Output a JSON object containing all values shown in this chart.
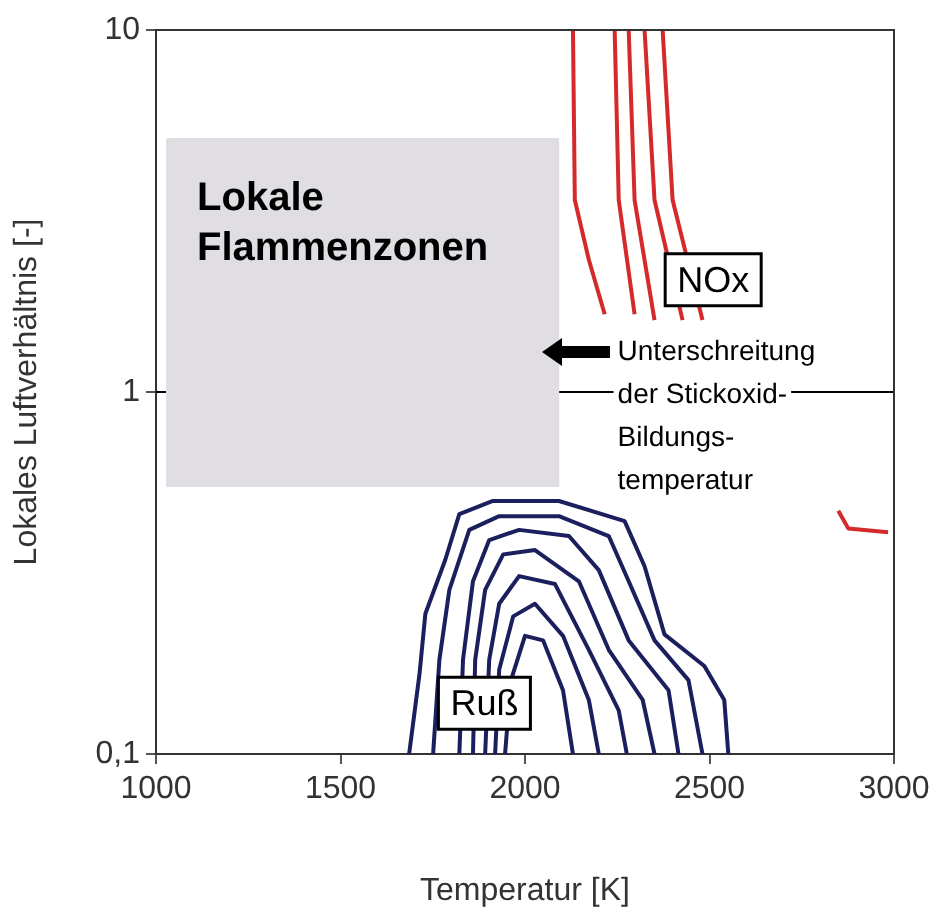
{
  "chart_data": {
    "type": "line",
    "xlabel": "Temperatur [K]",
    "ylabel": "Lokales Luftverhältnis [-]",
    "xlim": [
      1000,
      3000
    ],
    "xticks": [
      1000,
      1500,
      2000,
      2500,
      3000
    ],
    "ylim": [
      0.1,
      10
    ],
    "yticks": [
      {
        "value": 0.1,
        "label": "0,1"
      },
      1,
      10
    ],
    "log": "y",
    "grid": false,
    "legend": false,
    "marker": "none",
    "line_style": "solid",
    "series": [
      {
        "type": "area",
        "name": "Lokale Flammenzonen",
        "color": "#e0dde3",
        "x": [
          1030,
          2090,
          2090,
          1030,
          1030
        ],
        "values": [
          5,
          5,
          0.55,
          0.55,
          5
        ]
      },
      {
        "color": "#d42a2a",
        "x": [
          2130,
          2135,
          2173,
          2216
        ],
        "values": [
          10,
          3.39,
          2.32,
          1.64
        ]
      },
      {
        "color": "#d42a2a",
        "x": [
          2243,
          2254,
          2297
        ],
        "values": [
          10,
          3.39,
          1.64
        ]
      },
      {
        "color": "#d42a2a",
        "x": [
          2281,
          2297,
          2351
        ],
        "values": [
          10,
          3.39,
          1.58
        ]
      },
      {
        "color": "#d42a2a",
        "x": [
          2324,
          2351,
          2427
        ],
        "values": [
          10,
          3.39,
          1.58
        ]
      },
      {
        "color": "#d42a2a",
        "x": [
          2373,
          2400,
          2481
        ],
        "values": [
          10,
          3.39,
          1.58
        ]
      },
      {
        "color": "#d42a2a",
        "x": [
          2849,
          2876,
          2984
        ],
        "values": [
          0.47,
          0.42,
          0.41
        ]
      },
      {
        "color": "#1c1f5e",
        "x": [
          1686,
          1714,
          1730,
          1784,
          1822,
          1913,
          2092,
          2270,
          2324,
          2378,
          2486,
          2540,
          2551
        ],
        "values": [
          0.1,
          0.166,
          0.244,
          0.344,
          0.46,
          0.5,
          0.5,
          0.44,
          0.33,
          0.214,
          0.175,
          0.141,
          0.1
        ]
      },
      {
        "color": "#1c1f5e",
        "x": [
          1751,
          1768,
          1795,
          1849,
          1930,
          2092,
          2227,
          2281,
          2351,
          2443,
          2481
        ],
        "values": [
          0.1,
          0.182,
          0.284,
          0.416,
          0.454,
          0.454,
          0.4,
          0.3,
          0.206,
          0.16,
          0.1
        ]
      },
      {
        "color": "#1c1f5e",
        "x": [
          1822,
          1832,
          1859,
          1903,
          1984,
          2119,
          2200,
          2281,
          2389,
          2416
        ],
        "values": [
          0.1,
          0.182,
          0.3,
          0.39,
          0.416,
          0.4,
          0.322,
          0.206,
          0.15,
          0.1
        ]
      },
      {
        "color": "#1c1f5e",
        "x": [
          1859,
          1865,
          1892,
          1941,
          2027,
          2146,
          2227,
          2319,
          2351
        ],
        "values": [
          0.1,
          0.182,
          0.284,
          0.356,
          0.366,
          0.3,
          0.194,
          0.141,
          0.1
        ]
      },
      {
        "color": "#1c1f5e",
        "x": [
          1892,
          1903,
          1930,
          1984,
          2081,
          2173,
          2254,
          2276
        ],
        "values": [
          0.1,
          0.182,
          0.26,
          0.31,
          0.295,
          0.194,
          0.132,
          0.1
        ]
      },
      {
        "color": "#1c1f5e",
        "x": [
          1919,
          1930,
          1968,
          2027,
          2103,
          2173,
          2200
        ],
        "values": [
          0.1,
          0.171,
          0.24,
          0.26,
          0.212,
          0.141,
          0.1
        ]
      },
      {
        "color": "#1c1f5e",
        "x": [
          1946,
          1962,
          2000,
          2049,
          2103,
          2130
        ],
        "values": [
          0.1,
          0.16,
          0.212,
          0.206,
          0.15,
          0.1
        ]
      }
    ],
    "ref_lines": [
      {
        "axis": "y",
        "value": 1,
        "color": "#000000"
      }
    ],
    "annotations": [
      "NOx",
      "Ruß",
      "Unterschreitung\nder Stickoxid-\nBildungs-\ntemperatur"
    ]
  }
}
